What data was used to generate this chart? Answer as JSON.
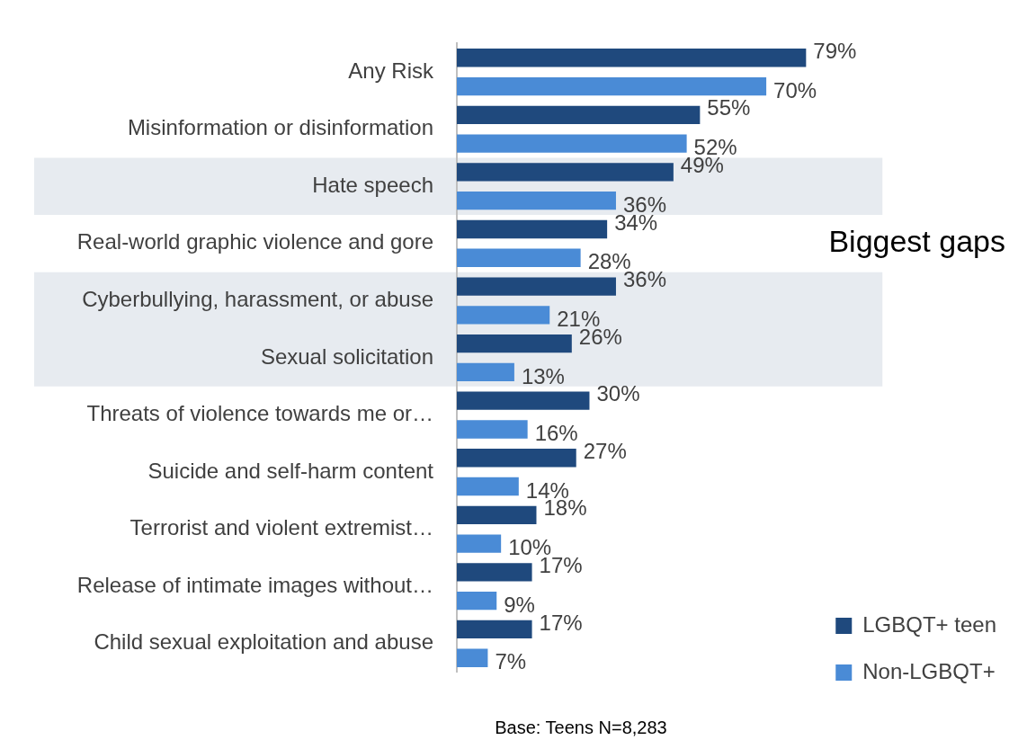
{
  "chart_data": {
    "type": "bar",
    "orientation": "horizontal",
    "categories": [
      "Any Risk",
      "Misinformation or disinformation",
      "Hate speech",
      "Real-world graphic violence and gore",
      "Cyberbullying, harassment, or abuse",
      "Sexual solicitation",
      "Threats of violence towards me or…",
      "Suicide and self-harm content",
      "Terrorist and violent extremist…",
      "Release of intimate images without…",
      "Child sexual exploitation and abuse"
    ],
    "series": [
      {
        "name": "LGBQT+ teen",
        "color": "#1f497d",
        "values": [
          79,
          55,
          49,
          34,
          36,
          26,
          30,
          27,
          18,
          17,
          17
        ],
        "value_labels": [
          "79%",
          "55%",
          "49%",
          "34%",
          "36%",
          "26%",
          "30%",
          "27%",
          "18%",
          "17%",
          "17%"
        ]
      },
      {
        "name": "Non-LGBQT+",
        "color": "#4a8bd6",
        "values": [
          70,
          52,
          36,
          28,
          21,
          13,
          16,
          14,
          10,
          9,
          7
        ],
        "value_labels": [
          "70%",
          "52%",
          "36%",
          "28%",
          "21%",
          "13%",
          "16%",
          "14%",
          "10%",
          "9%",
          "7%"
        ]
      }
    ],
    "bands": [
      {
        "axis": "y",
        "from": "Hate speech",
        "to": "Hate speech",
        "color": "#e7ebf0"
      },
      {
        "axis": "y",
        "from": "Cyberbullying, harassment, or abuse",
        "to": "Sexual solicitation",
        "color": "#e7ebf0"
      }
    ],
    "annotations": [
      "Biggest gaps",
      "Base: Teens N=8,283"
    ],
    "legend": "bottom right"
  }
}
